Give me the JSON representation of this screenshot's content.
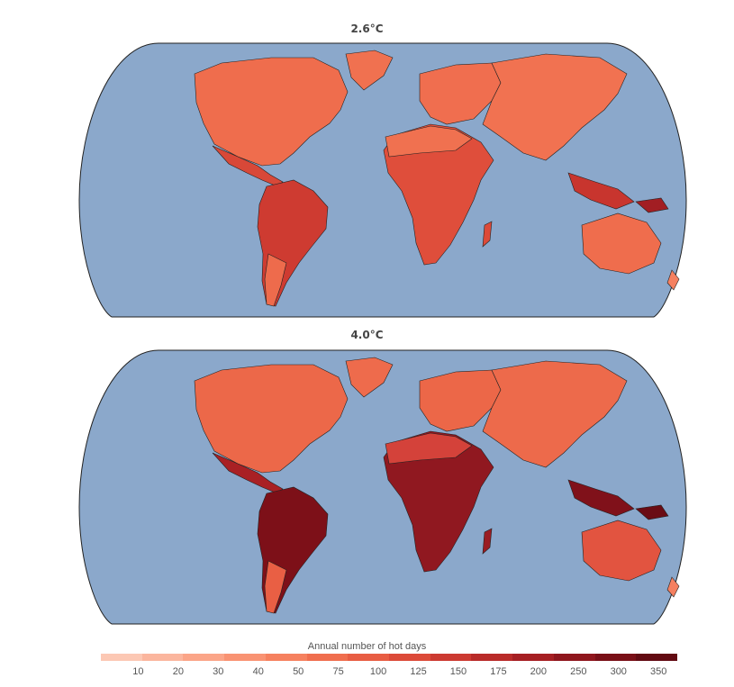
{
  "panels": [
    {
      "title": "2.6°C"
    },
    {
      "title": "4.0°C"
    }
  ],
  "legend": {
    "label": "Annual number of hot days",
    "ticks": [
      "10",
      "20",
      "30",
      "40",
      "50",
      "75",
      "100",
      "125",
      "150",
      "175",
      "200",
      "250",
      "300",
      "350"
    ],
    "colors": [
      "#fcc8b4",
      "#fbb69e",
      "#fba588",
      "#f99373",
      "#f6815f",
      "#f06e4e",
      "#e85d43",
      "#dc4a39",
      "#cc3a31",
      "#b92b29",
      "#a61f23",
      "#8f161d",
      "#790f17",
      "#620a12"
    ]
  },
  "colors": {
    "ocean": "#8ba8cb",
    "border": "#222222"
  }
}
